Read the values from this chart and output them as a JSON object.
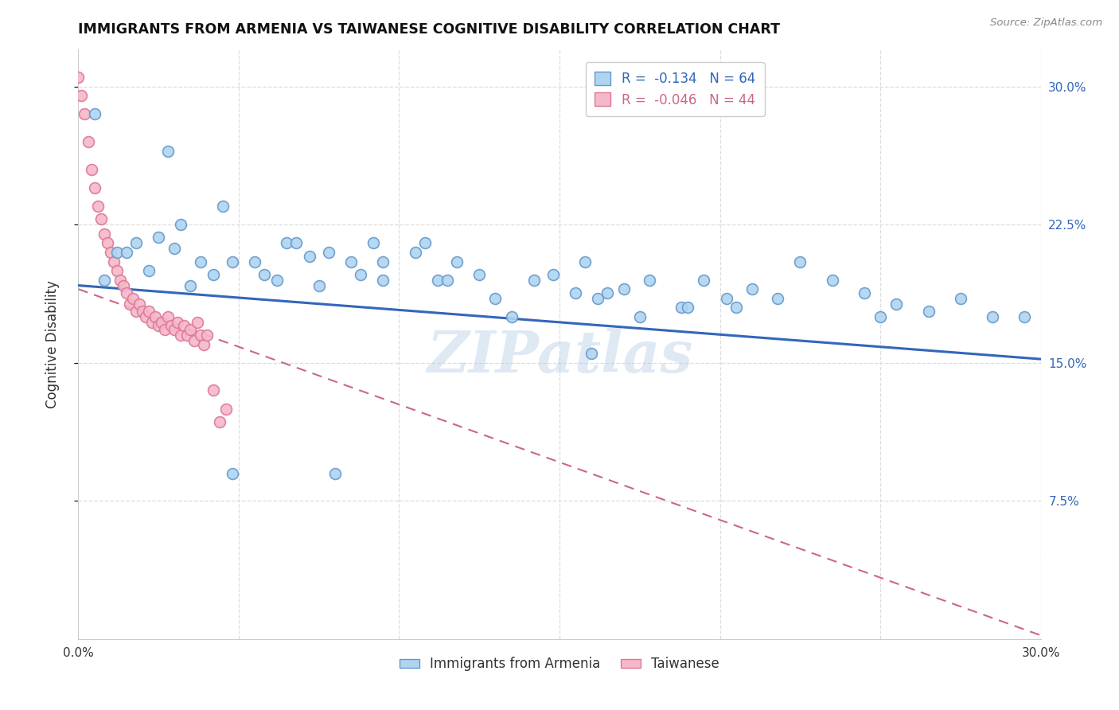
{
  "title": "IMMIGRANTS FROM ARMENIA VS TAIWANESE COGNITIVE DISABILITY CORRELATION CHART",
  "source": "Source: ZipAtlas.com",
  "ylabel": "Cognitive Disability",
  "xlim": [
    0.0,
    0.3
  ],
  "ylim": [
    0.0,
    0.32
  ],
  "xtick_positions": [
    0.0,
    0.05,
    0.1,
    0.15,
    0.2,
    0.25,
    0.3
  ],
  "xtick_labels": [
    "0.0%",
    "",
    "",
    "",
    "",
    "",
    "30.0%"
  ],
  "ytick_positions": [
    0.075,
    0.15,
    0.225,
    0.3
  ],
  "ytick_labels_right": [
    "7.5%",
    "15.0%",
    "22.5%",
    "30.0%"
  ],
  "legend_upper": [
    {
      "label": "R =  -0.134   N = 64",
      "facecolor": "#aed4f0",
      "edgecolor": "#6699cc"
    },
    {
      "label": "R =  -0.046   N = 44",
      "facecolor": "#f5b8c8",
      "edgecolor": "#dd7799"
    }
  ],
  "legend_lower": [
    {
      "label": "Immigrants from Armenia",
      "facecolor": "#aed4f0",
      "edgecolor": "#6699cc"
    },
    {
      "label": "Taiwanese",
      "facecolor": "#f5b8c8",
      "edgecolor": "#dd7799"
    }
  ],
  "blue_scatter_x": [
    0.005,
    0.028,
    0.045,
    0.032,
    0.018,
    0.012,
    0.038,
    0.022,
    0.015,
    0.008,
    0.042,
    0.035,
    0.025,
    0.048,
    0.03,
    0.055,
    0.065,
    0.058,
    0.072,
    0.068,
    0.062,
    0.078,
    0.085,
    0.092,
    0.088,
    0.075,
    0.095,
    0.105,
    0.112,
    0.118,
    0.125,
    0.13,
    0.108,
    0.095,
    0.142,
    0.155,
    0.148,
    0.162,
    0.17,
    0.178,
    0.165,
    0.158,
    0.188,
    0.195,
    0.202,
    0.21,
    0.218,
    0.225,
    0.235,
    0.245,
    0.255,
    0.265,
    0.275,
    0.285,
    0.295,
    0.115,
    0.135,
    0.175,
    0.19,
    0.205,
    0.25,
    0.16,
    0.08,
    0.048
  ],
  "blue_scatter_y": [
    0.285,
    0.265,
    0.235,
    0.225,
    0.215,
    0.21,
    0.205,
    0.2,
    0.21,
    0.195,
    0.198,
    0.192,
    0.218,
    0.205,
    0.212,
    0.205,
    0.215,
    0.198,
    0.208,
    0.215,
    0.195,
    0.21,
    0.205,
    0.215,
    0.198,
    0.192,
    0.205,
    0.21,
    0.195,
    0.205,
    0.198,
    0.185,
    0.215,
    0.195,
    0.195,
    0.188,
    0.198,
    0.185,
    0.19,
    0.195,
    0.188,
    0.205,
    0.18,
    0.195,
    0.185,
    0.19,
    0.185,
    0.205,
    0.195,
    0.188,
    0.182,
    0.178,
    0.185,
    0.175,
    0.175,
    0.195,
    0.175,
    0.175,
    0.18,
    0.18,
    0.175,
    0.155,
    0.09,
    0.09
  ],
  "pink_scatter_x": [
    0.0,
    0.001,
    0.002,
    0.003,
    0.004,
    0.005,
    0.006,
    0.007,
    0.008,
    0.009,
    0.01,
    0.011,
    0.012,
    0.013,
    0.014,
    0.015,
    0.016,
    0.017,
    0.018,
    0.019,
    0.02,
    0.021,
    0.022,
    0.023,
    0.024,
    0.025,
    0.026,
    0.027,
    0.028,
    0.029,
    0.03,
    0.031,
    0.032,
    0.033,
    0.034,
    0.035,
    0.036,
    0.037,
    0.038,
    0.039,
    0.04,
    0.042,
    0.044,
    0.046
  ],
  "pink_scatter_y": [
    0.305,
    0.295,
    0.285,
    0.27,
    0.255,
    0.245,
    0.235,
    0.228,
    0.22,
    0.215,
    0.21,
    0.205,
    0.2,
    0.195,
    0.192,
    0.188,
    0.182,
    0.185,
    0.178,
    0.182,
    0.178,
    0.175,
    0.178,
    0.172,
    0.175,
    0.17,
    0.172,
    0.168,
    0.175,
    0.17,
    0.168,
    0.172,
    0.165,
    0.17,
    0.165,
    0.168,
    0.162,
    0.172,
    0.165,
    0.16,
    0.165,
    0.135,
    0.118,
    0.125
  ],
  "blue_line_x": [
    0.0,
    0.3
  ],
  "blue_line_y": [
    0.192,
    0.152
  ],
  "pink_line_x": [
    0.0,
    0.3
  ],
  "pink_line_y": [
    0.19,
    0.002
  ],
  "watermark": "ZIPatlas",
  "bg_color": "#ffffff",
  "grid_color": "#dddddd",
  "blue_face": "#aed4f0",
  "blue_edge": "#6699cc",
  "pink_face": "#f5b8c8",
  "pink_edge": "#dd7799",
  "blue_line_color": "#3366bb",
  "pink_line_color": "#cc6688",
  "marker_size": 100,
  "title_color": "#111111",
  "source_color": "#888888",
  "ylabel_color": "#333333",
  "right_tick_color": "#3366bb"
}
